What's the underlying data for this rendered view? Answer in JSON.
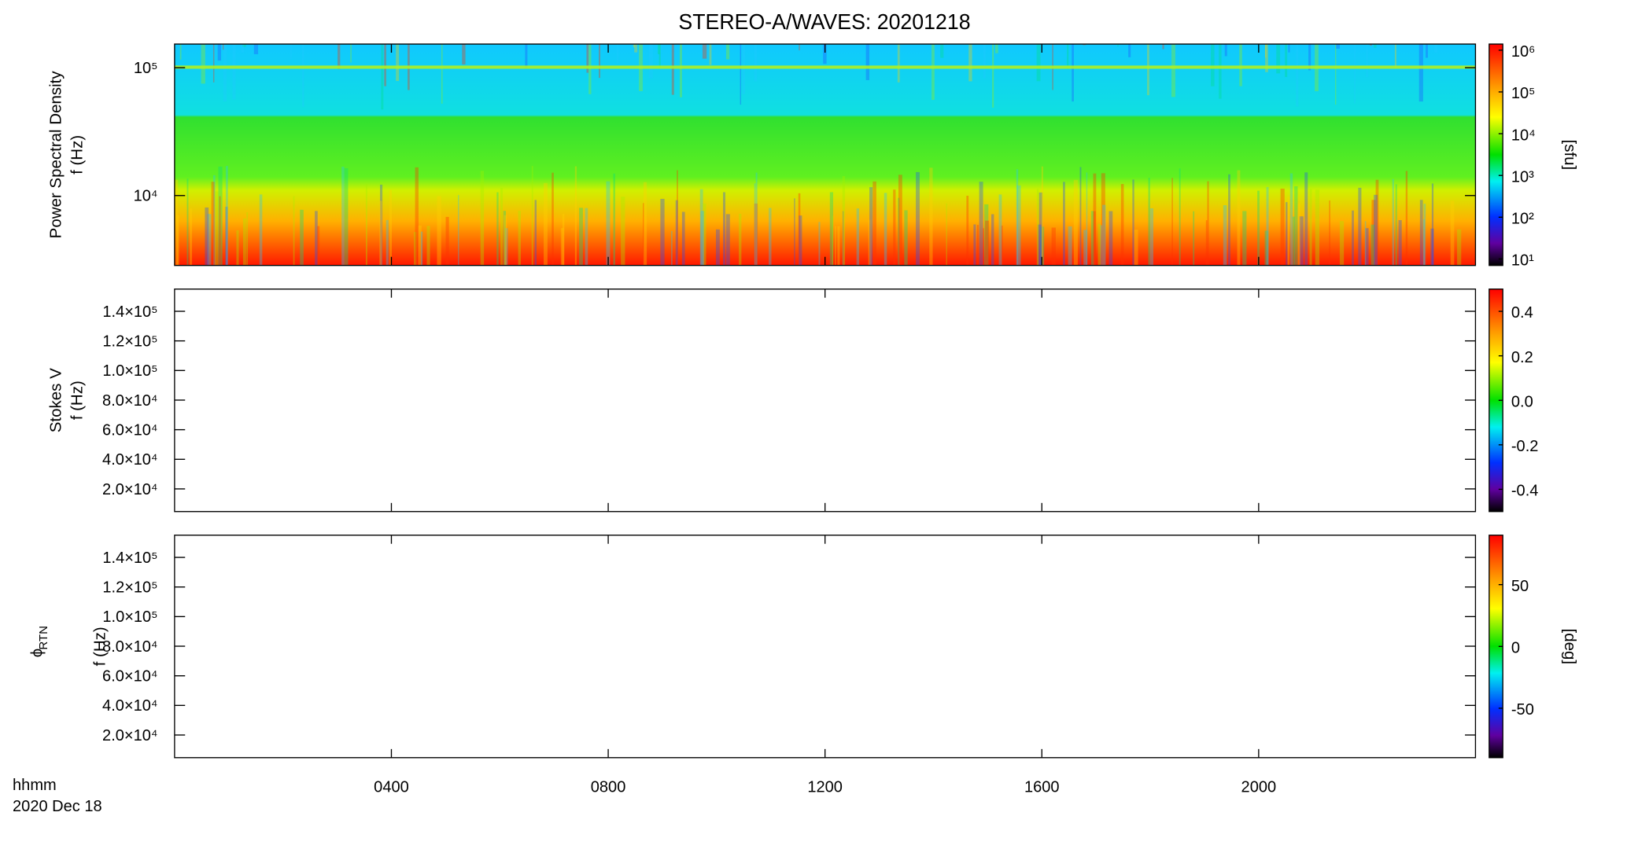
{
  "chart_data": [
    {
      "type": "heatmap",
      "title": "STEREO-A/WAVES: 20201218",
      "ylabel": [
        "Power Spectral Density",
        "f (Hz)"
      ],
      "ylog": true,
      "ylim": [
        2840,
        153000
      ],
      "yticks": [
        {
          "value": 10000,
          "label": "10⁴"
        },
        {
          "value": 100000,
          "label": "10⁵"
        }
      ],
      "colorbar": {
        "label": "[sfu]",
        "log": true,
        "lim": [
          7,
          1400000
        ],
        "ticks": [
          {
            "value": 10,
            "label": "10¹"
          },
          {
            "value": 100,
            "label": "10²"
          },
          {
            "value": 1000,
            "label": "10³"
          },
          {
            "value": 10000,
            "label": "10⁴"
          },
          {
            "value": 100000,
            "label": "10⁵"
          },
          {
            "value": 1000000,
            "label": "10⁶"
          }
        ]
      }
    },
    {
      "type": "heatmap",
      "ylabel": [
        "Stokes V",
        "f (Hz)"
      ],
      "ylog": false,
      "ylim": [
        4700,
        155000
      ],
      "yticks": [
        {
          "value": 20000,
          "label": "2.0×10⁴"
        },
        {
          "value": 40000,
          "label": "4.0×10⁴"
        },
        {
          "value": 60000,
          "label": "6.0×10⁴"
        },
        {
          "value": 80000,
          "label": "8.0×10⁴"
        },
        {
          "value": 100000,
          "label": "1.0×10⁵"
        },
        {
          "value": 120000,
          "label": "1.2×10⁵"
        },
        {
          "value": 140000,
          "label": "1.4×10⁵"
        }
      ],
      "colorbar": {
        "log": false,
        "lim": [
          -0.5,
          0.5
        ],
        "ticks": [
          {
            "value": -0.4,
            "label": "-0.4"
          },
          {
            "value": -0.2,
            "label": "-0.2"
          },
          {
            "value": 0,
            "label": "0.0"
          },
          0.2,
          0.4
        ]
      }
    },
    {
      "type": "heatmap",
      "ylabel_symbol": "ϕ",
      "ylabel_subscript": "RTN",
      "ylabel": [
        "f (Hz)"
      ],
      "ylog": false,
      "ylim": [
        4700,
        155000
      ],
      "yticks": [
        {
          "value": 20000,
          "label": "2.0×10⁴"
        },
        {
          "value": 40000,
          "label": "4.0×10⁴"
        },
        {
          "value": 60000,
          "label": "6.0×10⁴"
        },
        {
          "value": 80000,
          "label": "8.0×10⁴"
        },
        {
          "value": 100000,
          "label": "1.0×10⁵"
        },
        {
          "value": 120000,
          "label": "1.2×10⁵"
        },
        {
          "value": 140000,
          "label": "1.4×10⁵"
        }
      ],
      "colorbar": {
        "label": "[deg]",
        "log": false,
        "lim": [
          -90,
          90
        ],
        "ticks": [
          -50,
          0,
          50
        ]
      },
      "xlabel": "hhmm",
      "date": "2020 Dec 18",
      "xlim": [
        0,
        24
      ],
      "xticks": [
        {
          "value": 4,
          "label": "0400"
        },
        {
          "value": 8,
          "label": "0800"
        },
        {
          "value": 12,
          "label": "1200"
        },
        {
          "value": 16,
          "label": "1600"
        },
        {
          "value": 20,
          "label": "2000"
        }
      ]
    }
  ]
}
